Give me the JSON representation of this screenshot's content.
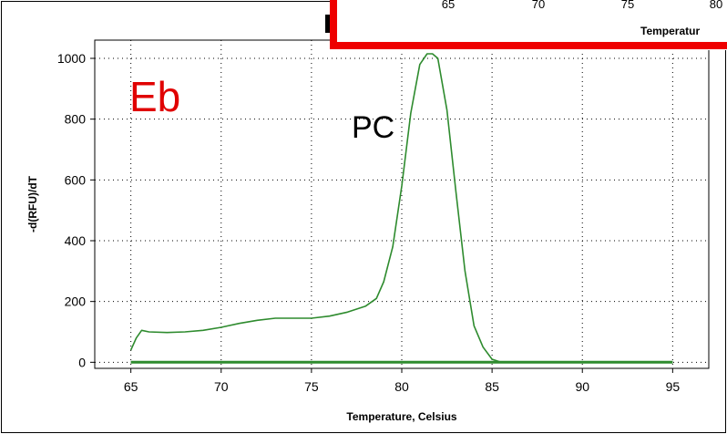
{
  "chart_data": {
    "type": "line",
    "xlabel": "Temperature, Celsius",
    "ylabel": "-d(RFU)/dT",
    "xlim": [
      63,
      97
    ],
    "ylim": [
      -20,
      1060
    ],
    "xticks": [
      65,
      70,
      75,
      80,
      85,
      90,
      95
    ],
    "yticks": [
      0,
      200,
      400,
      600,
      800,
      1000
    ],
    "grid": true,
    "annotations": {
      "panel": "Eb",
      "peak": "PC"
    },
    "series": [
      {
        "color": "#2e8b2e",
        "x": [
          65.0,
          65.3,
          65.6,
          66.0,
          67,
          68,
          69,
          70,
          71,
          72,
          73,
          74,
          75,
          76,
          77,
          78,
          78.6,
          79.0,
          79.5,
          80.0,
          80.5,
          81.0,
          81.4,
          81.7,
          82.0,
          82.5,
          83.0,
          83.5,
          84.0,
          84.5,
          85.0,
          85.5
        ],
        "y": [
          40,
          80,
          105,
          100,
          98,
          100,
          105,
          115,
          128,
          138,
          145,
          145,
          145,
          152,
          165,
          185,
          210,
          265,
          380,
          580,
          820,
          980,
          1015,
          1015,
          1000,
          830,
          560,
          300,
          120,
          50,
          10,
          0
        ]
      },
      {
        "color": "#2e8b2e",
        "x": [
          65,
          95
        ],
        "y": [
          0,
          0
        ]
      }
    ],
    "inset": {
      "xticks": [
        "65",
        "70",
        "75",
        "80"
      ],
      "xlabel": "Temperatur",
      "border_color": "#ee0000"
    }
  },
  "colors": {
    "line": "#2e8b2e",
    "panel_label": "#e00000",
    "inset_border": "#ee0000",
    "grid": "#000000"
  }
}
